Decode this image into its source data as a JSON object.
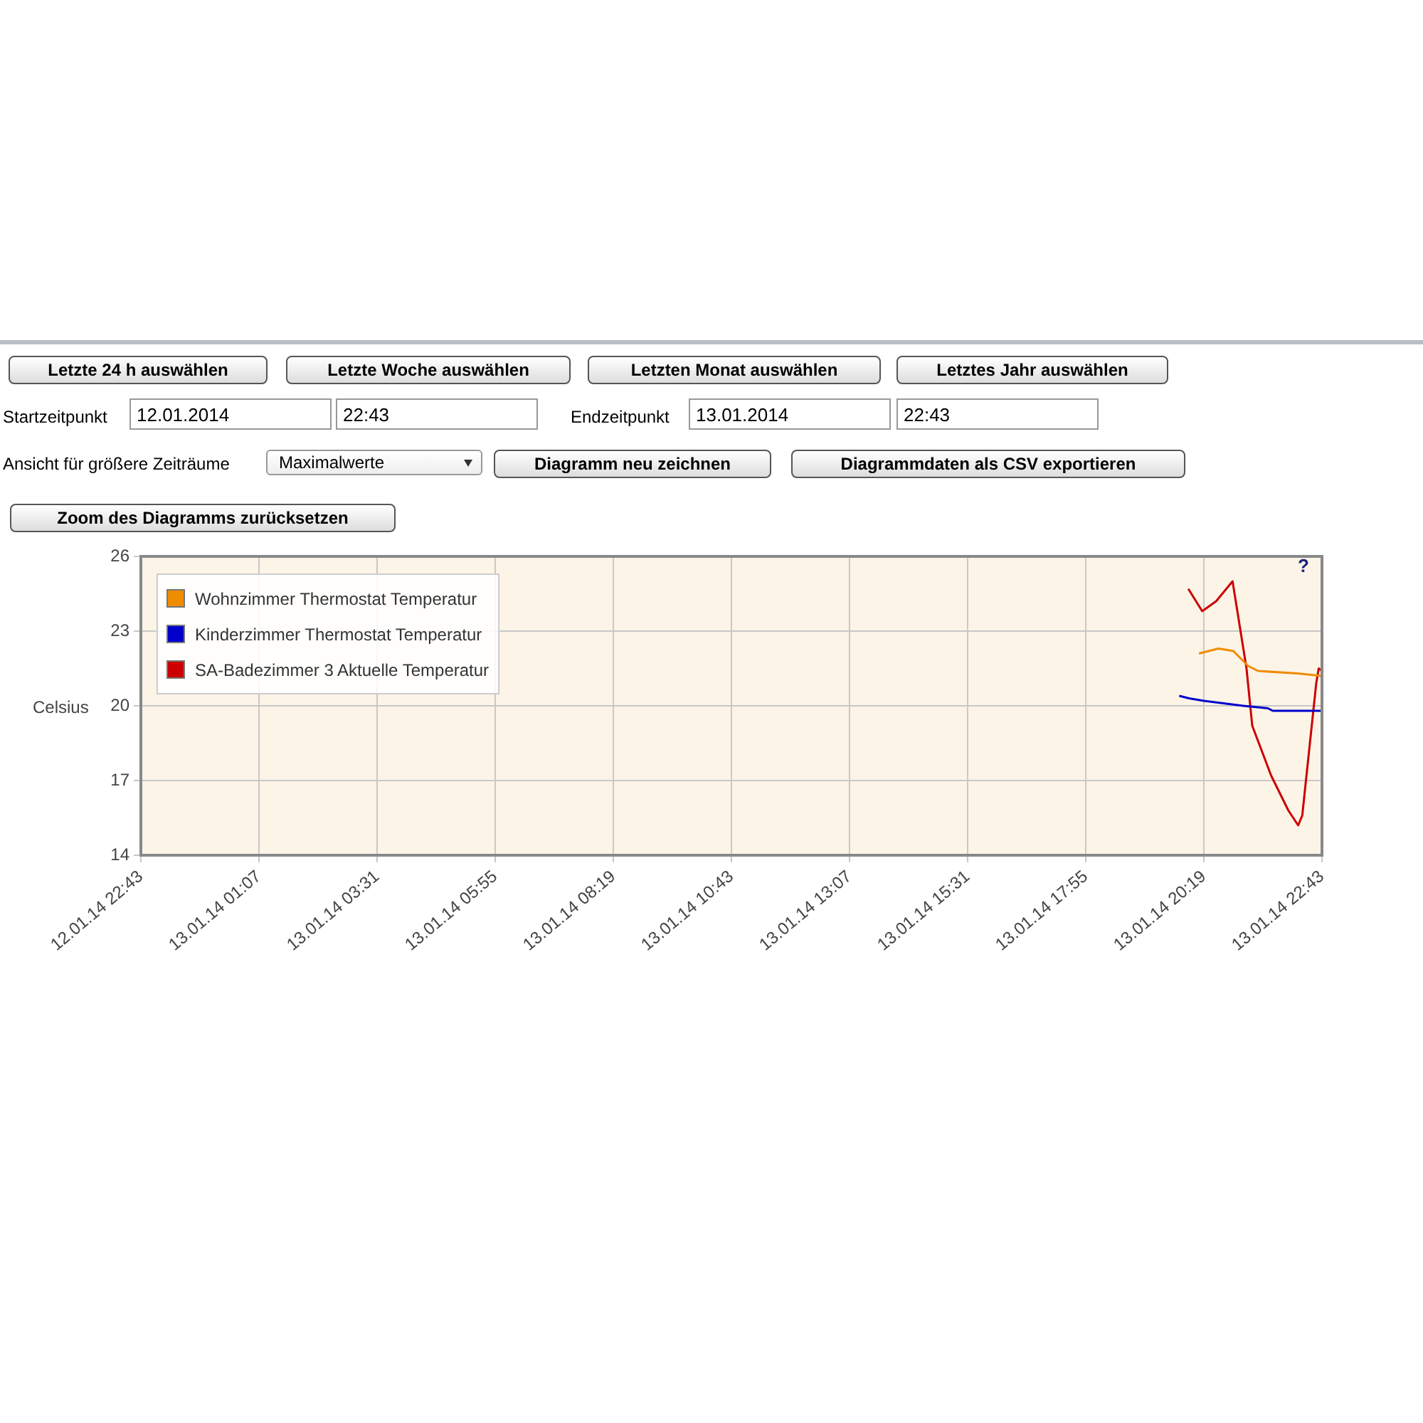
{
  "chart_data": {
    "type": "line",
    "ylabel": "Celsius",
    "legend": "top left",
    "grid": true,
    "marker": "none",
    "line_style": "solid",
    "xlim": [
      "2014-01-12T22:43",
      "2014-01-13T22:43"
    ],
    "ylim": [
      14,
      26
    ],
    "yticks": [
      14,
      17,
      20,
      23,
      26
    ],
    "xticks": [
      {
        "value": "2014-01-12T22:43",
        "label": "12.01.14 22:43"
      },
      {
        "value": "2014-01-13T01:07",
        "label": "13.01.14 01:07"
      },
      {
        "value": "2014-01-13T03:31",
        "label": "13.01.14 03:31"
      },
      {
        "value": "2014-01-13T05:55",
        "label": "13.01.14 05:55"
      },
      {
        "value": "2014-01-13T08:19",
        "label": "13.01.14 08:19"
      },
      {
        "value": "2014-01-13T10:43",
        "label": "13.01.14 10:43"
      },
      {
        "value": "2014-01-13T13:07",
        "label": "13.01.14 13:07"
      },
      {
        "value": "2014-01-13T15:31",
        "label": "13.01.14 15:31"
      },
      {
        "value": "2014-01-13T17:55",
        "label": "13.01.14 17:55"
      },
      {
        "value": "2014-01-13T20:19",
        "label": "13.01.14 20:19"
      },
      {
        "value": "2014-01-13T22:43",
        "label": "13.01.14 22:43"
      }
    ],
    "series": [
      {
        "name": "Wohnzimmer Thermostat Temperatur",
        "color": "#f08c00",
        "x": [
          "2014-01-13T20:13",
          "2014-01-13T20:37",
          "2014-01-13T20:55",
          "2014-01-13T21:13",
          "2014-01-13T21:25",
          "2014-01-13T22:13",
          "2014-01-13T22:43"
        ],
        "values": [
          22.1,
          22.3,
          22.2,
          21.6,
          21.4,
          21.3,
          21.2
        ]
      },
      {
        "name": "Kinderzimmer Thermostat Temperatur",
        "color": "#0000cc",
        "x": [
          "2014-01-13T19:49",
          "2014-01-13T20:01",
          "2014-01-13T20:19",
          "2014-01-13T20:43",
          "2014-01-13T21:07",
          "2014-01-13T21:37",
          "2014-01-13T21:43",
          "2014-01-13T22:43"
        ],
        "values": [
          20.4,
          20.3,
          20.2,
          20.1,
          20,
          19.9,
          19.8,
          19.8
        ]
      },
      {
        "name": "SA-Badezimmer 3 Aktuelle Temperatur",
        "color": "#cc0000",
        "x": [
          "2014-01-13T20:00",
          "2014-01-13T20:17",
          "2014-01-13T20:34",
          "2014-01-13T20:54",
          "2014-01-13T21:11",
          "2014-01-13T21:18",
          "2014-01-13T21:41",
          "2014-01-13T22:02",
          "2014-01-13T22:14",
          "2014-01-13T22:19",
          "2014-01-13T22:27",
          "2014-01-13T22:36",
          "2014-01-13T22:39",
          "2014-01-13T22:43"
        ],
        "values": [
          24.7,
          23.8,
          24.2,
          25,
          21.5,
          19.2,
          17.2,
          15.8,
          15.2,
          15.6,
          18.1,
          20.9,
          21.5,
          21.4
        ]
      }
    ],
    "annotations": [
      "Letzte 24 h auswählen",
      "Letzte Woche auswählen",
      "Letzten Monat auswählen",
      "Letztes Jahr auswählen",
      "Startzeitpunkt",
      "12.01.2014",
      "22:43",
      "Endzeitpunkt",
      "13.01.2014",
      "22:43",
      "Ansicht für größere Zeiträume",
      "Maximalwerte",
      "Diagramm neu zeichnen",
      "Diagrammdaten als CSV exportieren",
      "Zoom des Diagramms zurücksetzen",
      "?"
    ]
  }
}
